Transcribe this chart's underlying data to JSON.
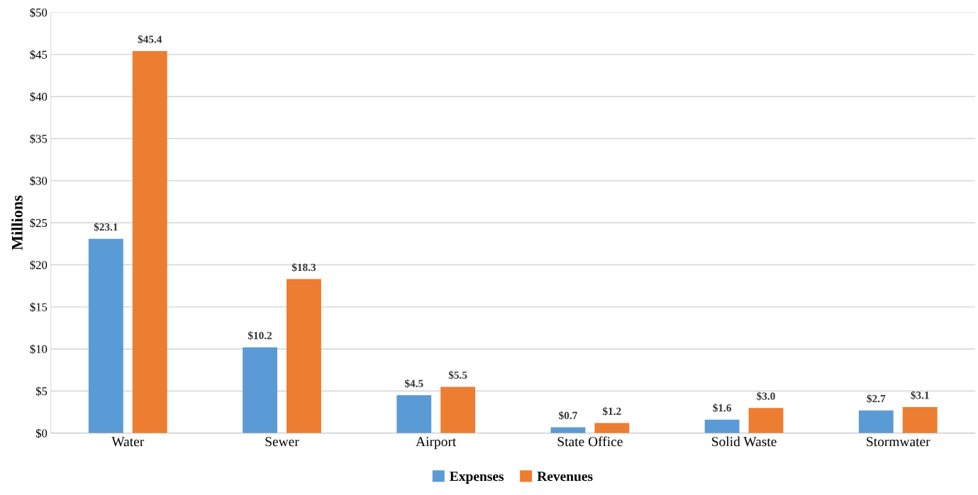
{
  "chart_data": {
    "type": "bar",
    "ylabel": "Millions",
    "categories": [
      "Water",
      "Sewer",
      "Airport",
      "State Office",
      "Solid Waste",
      "Stormwater"
    ],
    "series": [
      {
        "name": "Expenses",
        "color": "#5b9bd5",
        "values": [
          23.1,
          10.2,
          4.5,
          0.7,
          1.6,
          2.7
        ],
        "value_labels": [
          "$23.1",
          "$10.2",
          "$4.5",
          "$0.7",
          "$1.6",
          "$2.7"
        ]
      },
      {
        "name": "Revenues",
        "color": "#ed7d31",
        "values": [
          45.4,
          18.3,
          5.5,
          1.2,
          3.0,
          3.1
        ],
        "value_labels": [
          "$45.4",
          "$18.3",
          "$5.5",
          "$1.2",
          "$3.0",
          "$3.1"
        ]
      }
    ],
    "ylim": [
      0,
      50
    ],
    "yticks": [
      {
        "value": 0,
        "label": "$0"
      },
      {
        "value": 5,
        "label": "$5"
      },
      {
        "value": 10,
        "label": "$10"
      },
      {
        "value": 15,
        "label": "$15"
      },
      {
        "value": 20,
        "label": "$20"
      },
      {
        "value": 25,
        "label": "$25"
      },
      {
        "value": 30,
        "label": "$30"
      },
      {
        "value": 35,
        "label": "$35"
      },
      {
        "value": 40,
        "label": "$40"
      },
      {
        "value": 45,
        "label": "$45"
      },
      {
        "value": 50,
        "label": "$50"
      }
    ],
    "grid": "y",
    "legend": "bottom"
  }
}
